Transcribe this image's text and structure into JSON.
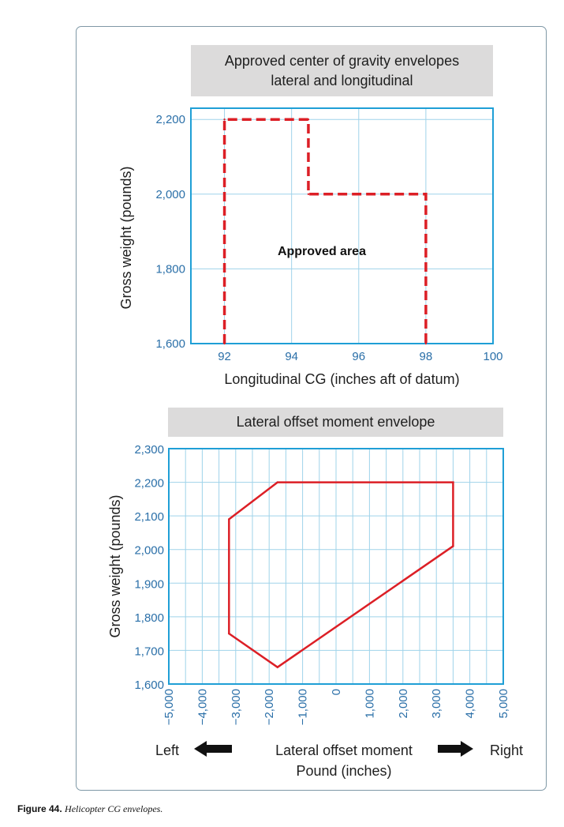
{
  "figure": {
    "label": "Figure 44.",
    "caption": "Helicopter CG envelopes."
  },
  "colors": {
    "frame": "#7f98a6",
    "plot_border": "#1f9fd6",
    "grid": "#9fd3ea",
    "tick_text": "#2a6fa8",
    "envelope": "#dc1f26",
    "title_bg": "#dcdbdb"
  },
  "chart_data": [
    {
      "type": "line",
      "title_lines": [
        "Approved center of gravity envelopes",
        "lateral and longitudinal"
      ],
      "xlabel": "Longitudinal CG (inches aft of datum)",
      "ylabel": "Gross weight (pounds)",
      "xlim": [
        91,
        100
      ],
      "ylim": [
        1600,
        2230
      ],
      "x_ticks": [
        92,
        94,
        96,
        98,
        100
      ],
      "x_tick_labels": [
        "92",
        "94",
        "96",
        "98",
        "100"
      ],
      "y_ticks": [
        1600,
        1800,
        2000,
        2200
      ],
      "y_tick_labels": [
        "1,600",
        "1,800",
        "2,000",
        "2,200"
      ],
      "x_grid": [
        92,
        94,
        96,
        98,
        100
      ],
      "y_grid": [
        1800,
        2000,
        2200
      ],
      "grid": true,
      "annotation": {
        "text": "Approved area",
        "x": 94.9,
        "y": 1837
      },
      "series": [
        {
          "style": "dashed",
          "x": [
            92,
            92,
            94.5,
            94.5,
            98,
            98
          ],
          "y": [
            1600,
            2200,
            2200,
            2000,
            2000,
            1600
          ]
        }
      ]
    },
    {
      "type": "line",
      "title": "Lateral offset moment envelope",
      "xlabel_lines": [
        "Lateral offset moment",
        "Pound (inches)"
      ],
      "ylabel": "Gross weight (pounds)",
      "direction_left": "Left",
      "direction_right": "Right",
      "xlim": [
        -5000,
        5000
      ],
      "ylim": [
        1600,
        2300
      ],
      "x_ticks": [
        -5000,
        -4000,
        -3000,
        -2000,
        -1000,
        0,
        1000,
        2000,
        3000,
        4000,
        5000
      ],
      "x_tick_labels": [
        "−5,000",
        "−4,000",
        "−3,000",
        "−2,000",
        "−1,000",
        "0",
        "1,000",
        "2,000",
        "3,000",
        "4,000",
        "5,000"
      ],
      "y_ticks": [
        1600,
        1700,
        1800,
        1900,
        2000,
        2100,
        2200,
        2300
      ],
      "y_tick_labels": [
        "1,600",
        "1,700",
        "1,800",
        "1,900",
        "2,000",
        "2,100",
        "2,200",
        "2,300"
      ],
      "x_grid": [
        -4500,
        -4000,
        -3500,
        -3000,
        -2500,
        -2000,
        -1500,
        -1000,
        -500,
        0,
        500,
        1000,
        1500,
        2000,
        2500,
        3000,
        3500,
        4000,
        4500
      ],
      "y_grid": [
        1700,
        1800,
        1900,
        2000,
        2100,
        2200
      ],
      "grid": true,
      "series": [
        {
          "style": "solid",
          "closed": true,
          "x": [
            -1750,
            3500,
            3500,
            -1750,
            -3200,
            -3200
          ],
          "y": [
            2200,
            2200,
            2010,
            1650,
            1750,
            2090
          ]
        }
      ]
    }
  ]
}
